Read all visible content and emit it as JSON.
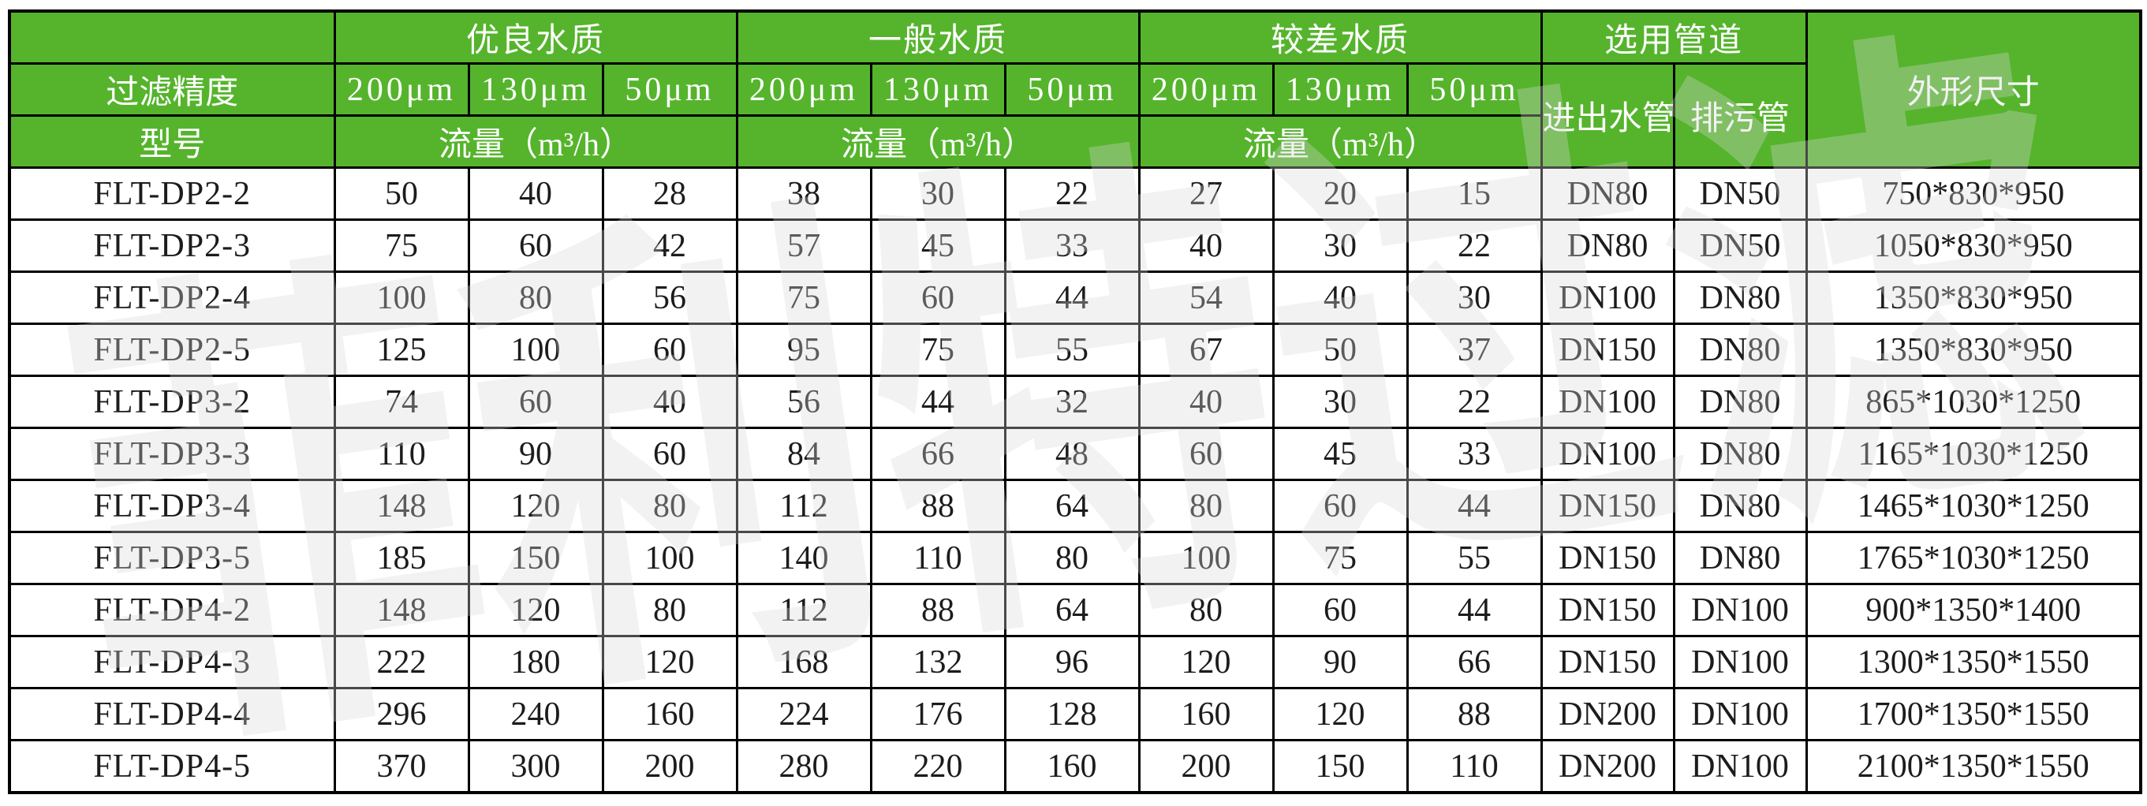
{
  "colors": {
    "header_green": "#55b42c",
    "border": "#000000",
    "text": "#1c1c1c",
    "header_text": "#ffffff"
  },
  "watermark": {
    "text": "菲利特过滤"
  },
  "table": {
    "header": {
      "filter_precision_label": "过滤精度",
      "model_label": "型号",
      "groups": [
        {
          "label": "优良水质",
          "columns": [
            "200μm",
            "130μm",
            "50μm"
          ],
          "flow_label": "流量（m³/h）"
        },
        {
          "label": "一般水质",
          "columns": [
            "200μm",
            "130μm",
            "50μm"
          ],
          "flow_label": "流量（m³/h）"
        },
        {
          "label": "较差水质",
          "columns": [
            "200μm",
            "130μm",
            "50μm"
          ],
          "flow_label": "流量（m³/h）"
        }
      ],
      "pipe_group": {
        "label": "选用管道",
        "inlet_outlet_label": "进出水管",
        "drain_label": "排污管"
      },
      "dimensions_label": "外形尺寸"
    },
    "rows": [
      {
        "model": "FLT-DP2-2",
        "excellent": [
          50,
          40,
          28
        ],
        "normal": [
          38,
          30,
          22
        ],
        "poor": [
          27,
          20,
          15
        ],
        "inlet": "DN80",
        "drain": "DN50",
        "dimensions": "750*830*950"
      },
      {
        "model": "FLT-DP2-3",
        "excellent": [
          75,
          60,
          42
        ],
        "normal": [
          57,
          45,
          33
        ],
        "poor": [
          40,
          30,
          22
        ],
        "inlet": "DN80",
        "drain": "DN50",
        "dimensions": "1050*830*950"
      },
      {
        "model": "FLT-DP2-4",
        "excellent": [
          100,
          80,
          56
        ],
        "normal": [
          75,
          60,
          44
        ],
        "poor": [
          54,
          40,
          30
        ],
        "inlet": "DN100",
        "drain": "DN80",
        "dimensions": "1350*830*950"
      },
      {
        "model": "FLT-DP2-5",
        "excellent": [
          125,
          100,
          60
        ],
        "normal": [
          95,
          75,
          55
        ],
        "poor": [
          67,
          50,
          37
        ],
        "inlet": "DN150",
        "drain": "DN80",
        "dimensions": "1350*830*950"
      },
      {
        "model": "FLT-DP3-2",
        "excellent": [
          74,
          60,
          40
        ],
        "normal": [
          56,
          44,
          32
        ],
        "poor": [
          40,
          30,
          22
        ],
        "inlet": "DN100",
        "drain": "DN80",
        "dimensions": "865*1030*1250"
      },
      {
        "model": "FLT-DP3-3",
        "excellent": [
          110,
          90,
          60
        ],
        "normal": [
          84,
          66,
          48
        ],
        "poor": [
          60,
          45,
          33
        ],
        "inlet": "DN100",
        "drain": "DN80",
        "dimensions": "1165*1030*1250"
      },
      {
        "model": "FLT-DP3-4",
        "excellent": [
          148,
          120,
          80
        ],
        "normal": [
          112,
          88,
          64
        ],
        "poor": [
          80,
          60,
          44
        ],
        "inlet": "DN150",
        "drain": "DN80",
        "dimensions": "1465*1030*1250"
      },
      {
        "model": "FLT-DP3-5",
        "excellent": [
          185,
          150,
          100
        ],
        "normal": [
          140,
          110,
          80
        ],
        "poor": [
          100,
          75,
          55
        ],
        "inlet": "DN150",
        "drain": "DN80",
        "dimensions": "1765*1030*1250"
      },
      {
        "model": "FLT-DP4-2",
        "excellent": [
          148,
          120,
          80
        ],
        "normal": [
          112,
          88,
          64
        ],
        "poor": [
          80,
          60,
          44
        ],
        "inlet": "DN150",
        "drain": "DN100",
        "dimensions": "900*1350*1400"
      },
      {
        "model": "FLT-DP4-3",
        "excellent": [
          222,
          180,
          120
        ],
        "normal": [
          168,
          132,
          96
        ],
        "poor": [
          120,
          90,
          66
        ],
        "inlet": "DN150",
        "drain": "DN100",
        "dimensions": "1300*1350*1550"
      },
      {
        "model": "FLT-DP4-4",
        "excellent": [
          296,
          240,
          160
        ],
        "normal": [
          224,
          176,
          128
        ],
        "poor": [
          160,
          120,
          88
        ],
        "inlet": "DN200",
        "drain": "DN100",
        "dimensions": "1700*1350*1550"
      },
      {
        "model": "FLT-DP4-5",
        "excellent": [
          370,
          300,
          200
        ],
        "normal": [
          280,
          220,
          160
        ],
        "poor": [
          200,
          150,
          110
        ],
        "inlet": "DN200",
        "drain": "DN100",
        "dimensions": "2100*1350*1550"
      }
    ]
  }
}
